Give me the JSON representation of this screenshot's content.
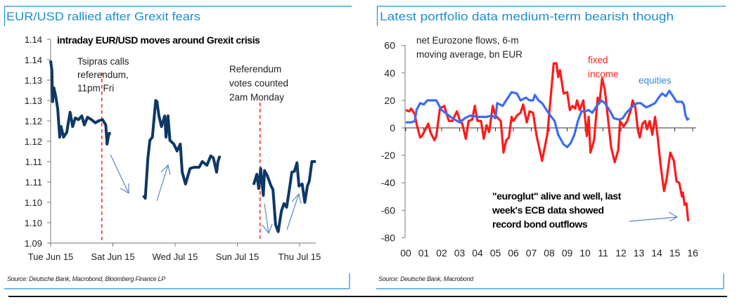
{
  "chart_data": [
    {
      "type": "line",
      "title": "EUR/USD rallied after Grexit fears",
      "subtitle": "intraday EUR/USD moves around Grexit crisis",
      "source": "Source: Deutsche Bank, Macrobond, Bloomberg Finance LP",
      "ylim": [
        1.09,
        1.14
      ],
      "y_ticks": [
        1.09,
        1.095,
        1.1,
        1.105,
        1.11,
        1.115,
        1.12,
        1.125,
        1.13,
        1.135,
        1.14
      ],
      "y_tick_labels": [
        "1.09",
        "1.10",
        "1.10",
        "1.11",
        "1.11",
        "1.12",
        "1.12",
        "1.13",
        "1.13",
        "1.14",
        "1.14"
      ],
      "x_ticks": [
        "2015-06-23 00:00",
        "2015-06-27 00:00",
        "2015-07-01 00:00",
        "2015-07-05 00:00",
        "2015-07-09 00:00"
      ],
      "x_tick_labels": [
        "Tue Jun 15",
        "Sat Jun 15",
        "Wed Jul 15",
        "Sun Jul 15",
        "Thu Jul 15"
      ],
      "grid": false,
      "series_color": "#0d3866",
      "segments": [
        [
          [
            "2015-06-23 00:00",
            1.1348
          ],
          [
            "2015-06-23 02:00",
            1.1324
          ],
          [
            "2015-06-23 03:00",
            1.1247
          ],
          [
            "2015-06-23 05:00",
            1.1281
          ],
          [
            "2015-06-23 08:00",
            1.1259
          ],
          [
            "2015-06-23 11:00",
            1.1229
          ],
          [
            "2015-06-23 14:00",
            1.116
          ],
          [
            "2015-06-23 16:00",
            1.1186
          ],
          [
            "2015-06-23 20:00",
            1.116
          ],
          [
            "2015-06-24 01:00",
            1.1172
          ],
          [
            "2015-06-24 04:00",
            1.1203
          ],
          [
            "2015-06-24 06:00",
            1.1221
          ],
          [
            "2015-06-24 10:00",
            1.1186
          ],
          [
            "2015-06-24 14:00",
            1.1207
          ],
          [
            "2015-06-24 19:00",
            1.1203
          ],
          [
            "2015-06-25 00:00",
            1.1212
          ],
          [
            "2015-06-25 04:00",
            1.119
          ],
          [
            "2015-06-25 09:00",
            1.1209
          ],
          [
            "2015-06-25 15:00",
            1.1203
          ],
          [
            "2015-06-25 21:00",
            1.1195
          ],
          [
            "2015-06-26 02:00",
            1.12
          ],
          [
            "2015-06-26 08:00",
            1.1203
          ],
          [
            "2015-06-26 13:00",
            1.119
          ],
          [
            "2015-06-26 15:00",
            1.1143
          ],
          [
            "2015-06-26 18:00",
            1.1169
          ],
          [
            "2015-06-26 21:00",
            1.1169
          ]
        ],
        [
          [
            "2015-06-28 23:00",
            1.1017
          ],
          [
            "2015-06-29 02:00",
            1.101
          ],
          [
            "2015-06-29 06:00",
            1.1109
          ],
          [
            "2015-06-29 09:00",
            1.1152
          ],
          [
            "2015-06-29 13:00",
            1.116
          ],
          [
            "2015-06-29 18:00",
            1.125
          ],
          [
            "2015-06-29 20:00",
            1.1247
          ],
          [
            "2015-06-29 23:00",
            1.1212
          ],
          [
            "2015-06-30 03:00",
            1.1186
          ],
          [
            "2015-06-30 08:00",
            1.1212
          ],
          [
            "2015-06-30 10:00",
            1.116
          ],
          [
            "2015-06-30 13:00",
            1.1212
          ],
          [
            "2015-06-30 16:00",
            1.1152
          ],
          [
            "2015-06-30 22:00",
            1.1143
          ],
          [
            "2015-07-01 03:00",
            1.1126
          ],
          [
            "2015-07-01 08:00",
            1.1143
          ],
          [
            "2015-07-01 11:00",
            1.1074
          ],
          [
            "2015-07-01 16:00",
            1.1045
          ],
          [
            "2015-07-01 23:00",
            1.1083
          ],
          [
            "2015-07-02 05:00",
            1.1086
          ],
          [
            "2015-07-02 13:00",
            1.1086
          ],
          [
            "2015-07-02 18:00",
            1.11
          ],
          [
            "2015-07-03 01:00",
            1.1091
          ],
          [
            "2015-07-03 07:00",
            1.1114
          ],
          [
            "2015-07-03 11:00",
            1.1109
          ],
          [
            "2015-07-03 16:00",
            1.1074
          ],
          [
            "2015-07-03 18:00",
            1.11
          ],
          [
            "2015-07-03 21:00",
            1.1114
          ]
        ],
        [
          [
            "2015-07-06 01:00",
            1.1043
          ],
          [
            "2015-07-06 06:00",
            1.1069
          ],
          [
            "2015-07-06 09:00",
            1.1034
          ],
          [
            "2015-07-06 12:00",
            1.1083
          ],
          [
            "2015-07-06 16:00",
            1.1017
          ],
          [
            "2015-07-06 18:00",
            1.1078
          ],
          [
            "2015-07-06 22:00",
            1.1066
          ],
          [
            "2015-07-07 04:00",
            1.104
          ],
          [
            "2015-07-07 07:00",
            1.1031
          ],
          [
            "2015-07-07 11:00",
            1.0945
          ],
          [
            "2015-07-07 15:00",
            1.0928
          ],
          [
            "2015-07-07 20:00",
            1.0979
          ],
          [
            "2015-07-08 00:00",
            1.0997
          ],
          [
            "2015-07-08 04:00",
            1.0988
          ],
          [
            "2015-07-08 09:00",
            1.104
          ],
          [
            "2015-07-08 12:00",
            1.1074
          ],
          [
            "2015-07-08 16:00",
            1.1076
          ],
          [
            "2015-07-08 20:00",
            1.1097
          ],
          [
            "2015-07-08 23:00",
            1.104
          ],
          [
            "2015-07-09 04:00",
            1.1045
          ],
          [
            "2015-07-09 08:00",
            1.1
          ],
          [
            "2015-07-09 12:00",
            1.104
          ],
          [
            "2015-07-09 15:00",
            1.1052
          ],
          [
            "2015-07-09 19:00",
            1.11
          ],
          [
            "2015-07-10 01:00",
            1.11
          ]
        ]
      ],
      "markers": [
        {
          "x": "2015-06-26 07:00",
          "color": "#ff2020",
          "label_lines": [
            "Tsipras calls",
            "referendum,",
            "11pm Fri"
          ]
        },
        {
          "x": "2015-07-06 11:00",
          "color": "#ff2020",
          "label_lines": [
            "Referendum",
            "votes counted",
            "2am Monday"
          ]
        }
      ]
    },
    {
      "type": "line",
      "title": "Latest portfolio data medium-term bearish though",
      "subtitle_lines": [
        "net Eurozone flows, 6-m",
        "moving average, bn EUR"
      ],
      "source": "Source: Deutsche Bank, Macrobond",
      "ylim": [
        -80,
        60
      ],
      "y_ticks": [
        60,
        40,
        20,
        0,
        -20,
        -40,
        -60,
        -80
      ],
      "y_tick_labels": [
        "60",
        "40",
        "20",
        "0",
        "-20",
        "-40",
        "-60",
        "-80"
      ],
      "xlim": [
        2000,
        2016
      ],
      "x_tick_labels": [
        "00",
        "01",
        "02",
        "03",
        "04",
        "05",
        "06",
        "07",
        "08",
        "09",
        "10",
        "11",
        "12",
        "13",
        "14",
        "15",
        "16"
      ],
      "grid": false,
      "annotation_lines": [
        "\"euroglut\" alive and well, last",
        "week's ECB data showed",
        "record bond outflows"
      ],
      "series": [
        {
          "name": "fixed income",
          "color": "#ff1a1a",
          "x": [
            2000.0,
            2000.2,
            2000.3,
            2000.5,
            2000.6,
            2000.8,
            2000.9,
            2001.1,
            2001.25,
            2001.4,
            2001.6,
            2001.7,
            2001.9,
            2002.15,
            2002.4,
            2002.6,
            2002.85,
            2003.0,
            2003.15,
            2003.35,
            2003.5,
            2003.7,
            2003.85,
            2004.0,
            2004.2,
            2004.35,
            2004.5,
            2004.65,
            2004.85,
            2005.0,
            2005.3,
            2005.45,
            2005.6,
            2005.75,
            2005.9,
            2006.0,
            2006.2,
            2006.4,
            2006.55,
            2006.75,
            2006.9,
            2007.1,
            2007.3,
            2007.6,
            2007.8,
            2007.9,
            2008.1,
            2008.25,
            2008.4,
            2008.5,
            2008.6,
            2008.8,
            2009.0,
            2009.15,
            2009.3,
            2009.45,
            2009.55,
            2009.7,
            2009.9,
            2010.1,
            2010.2,
            2010.3,
            2010.5,
            2010.7,
            2010.8,
            2010.95,
            2011.1,
            2011.2,
            2011.45,
            2011.65,
            2011.85,
            2011.95,
            2012.15,
            2012.35,
            2012.55,
            2012.65,
            2012.8,
            2012.95,
            2013.05,
            2013.2,
            2013.35,
            2013.45,
            2013.6,
            2013.75,
            2013.9,
            2014.05,
            2014.2,
            2014.4,
            2014.55,
            2014.75,
            2014.95,
            2015.1,
            2015.25,
            2015.4,
            2015.45,
            2015.55,
            2015.65,
            2015.75
          ],
          "values": [
            13,
            12,
            14,
            10,
            3,
            -7,
            -6,
            -1,
            3,
            -4,
            -9,
            -6,
            14,
            16,
            5,
            5,
            12,
            6,
            3,
            -8,
            5,
            6,
            16,
            5,
            5,
            -8,
            2,
            -3,
            16,
            9,
            5,
            -18,
            -9,
            -7,
            8,
            5,
            9,
            11,
            17,
            4,
            12,
            11,
            -6,
            -24,
            -11,
            -4,
            25,
            47,
            47,
            37,
            42,
            25,
            26,
            13,
            16,
            14,
            20,
            13,
            20,
            -6,
            8,
            -18,
            -9,
            22,
            18,
            36,
            28,
            16,
            -14,
            -25,
            -16,
            5,
            1,
            5,
            13,
            20,
            15,
            -2,
            -7,
            3,
            5,
            -1,
            5,
            -5,
            8,
            -7,
            -26,
            -46,
            -37,
            -18,
            -24,
            -39,
            -40,
            -50,
            -47,
            -56,
            -55,
            -68
          ]
        },
        {
          "name": "equities",
          "color": "#3a6cf2",
          "x": [
            2000.0,
            2000.3,
            2000.5,
            2000.6,
            2000.8,
            2001.0,
            2001.2,
            2001.4,
            2001.7,
            2002.0,
            2002.3,
            2002.6,
            2003.0,
            2003.3,
            2003.6,
            2004.0,
            2004.5,
            2004.8,
            2005.0,
            2005.1,
            2005.4,
            2005.6,
            2005.9,
            2006.2,
            2006.4,
            2006.7,
            2006.9,
            2007.1,
            2007.2,
            2007.4,
            2007.6,
            2007.8,
            2008.0,
            2008.3,
            2008.5,
            2008.8,
            2009.0,
            2009.2,
            2009.4,
            2009.6,
            2009.8,
            2010.0,
            2010.2,
            2010.4,
            2010.6,
            2010.9,
            2011.1,
            2011.4,
            2011.6,
            2011.9,
            2012.1,
            2012.3,
            2012.6,
            2012.9,
            2013.1,
            2013.4,
            2013.6,
            2013.9,
            2014.1,
            2014.3,
            2014.5,
            2014.7,
            2014.9,
            2015.1,
            2015.4,
            2015.5,
            2015.6,
            2015.7,
            2015.8
          ],
          "values": [
            4,
            4,
            5,
            13,
            18,
            17,
            20,
            20,
            20,
            13,
            10,
            7,
            4,
            7,
            9,
            8,
            8,
            9,
            7,
            18,
            16,
            20,
            26,
            25,
            20,
            22,
            20,
            20,
            24,
            20,
            18,
            14,
            10,
            5,
            -5,
            -12,
            -14,
            -11,
            -5,
            5,
            12,
            12,
            13,
            11,
            15,
            20,
            18,
            12,
            7,
            6,
            7,
            11,
            15,
            18,
            18,
            15,
            16,
            18,
            22,
            25,
            23,
            27,
            23,
            19,
            19,
            17,
            9,
            6,
            7
          ]
        }
      ]
    }
  ]
}
